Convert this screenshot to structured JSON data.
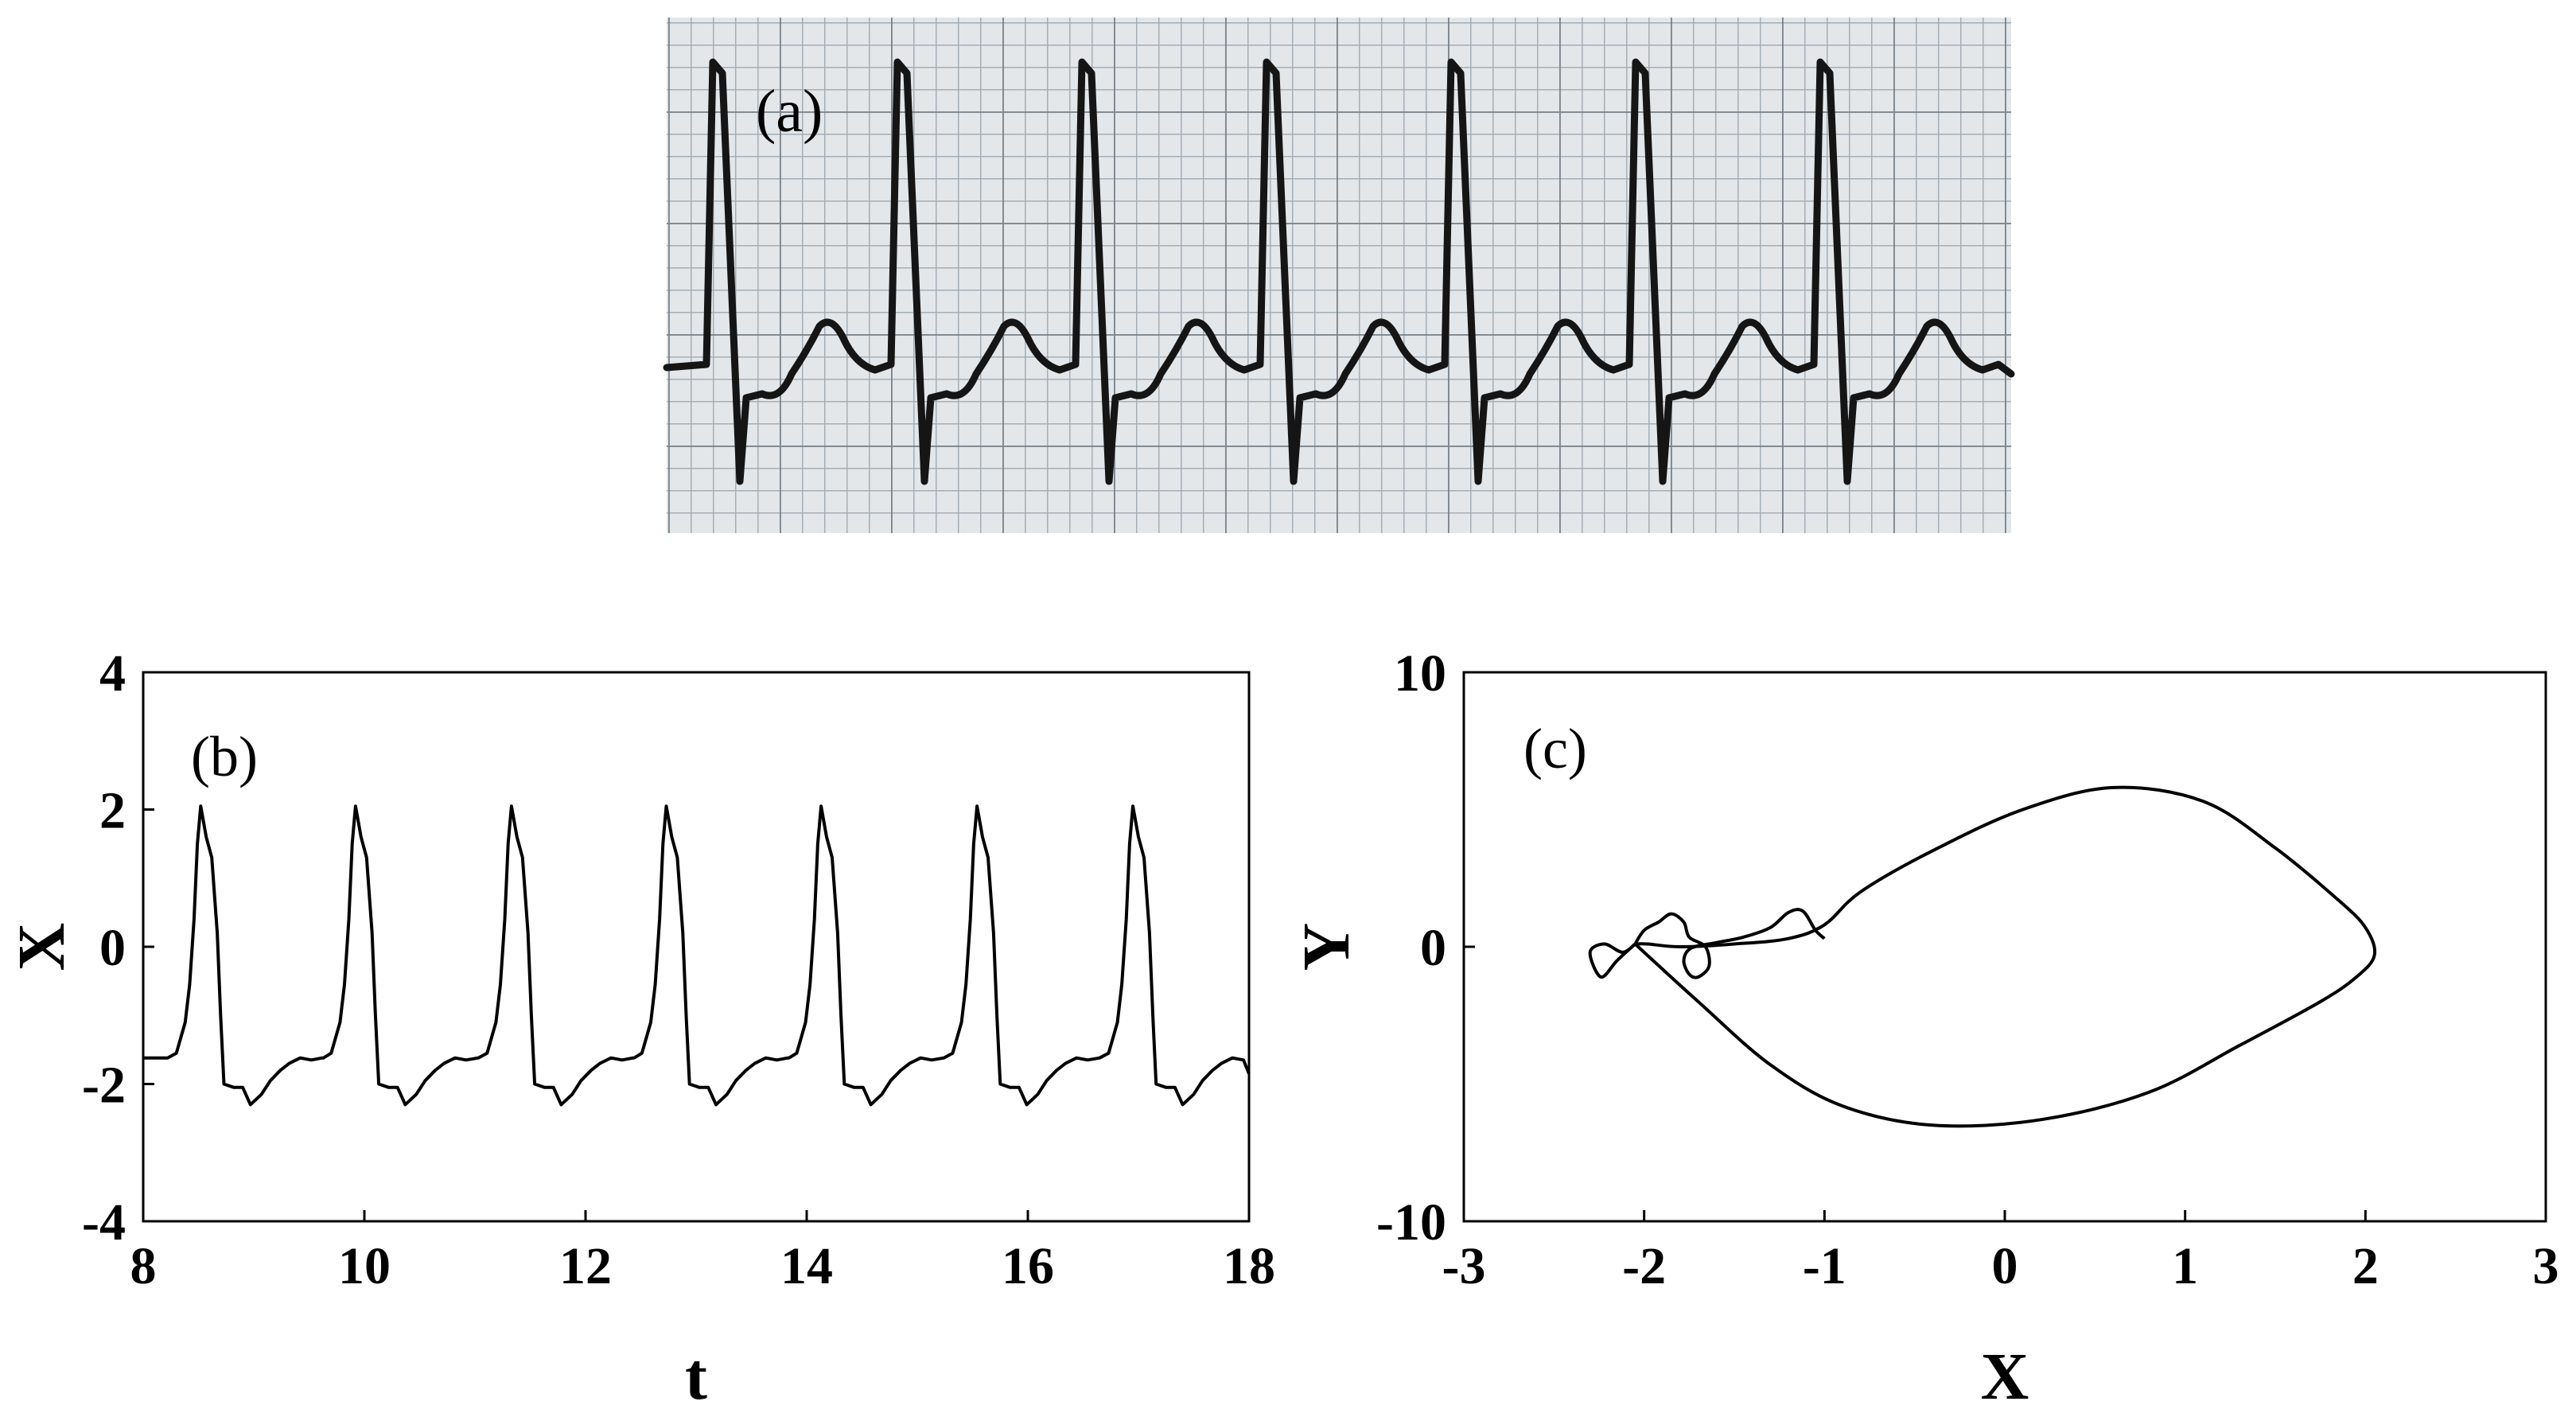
{
  "panels": {
    "a": {
      "label": "(a)"
    },
    "b": {
      "label": "(b)"
    },
    "c": {
      "label": "(c)"
    }
  },
  "chart_data": [
    {
      "id": "a",
      "type": "image",
      "content": "electrocardiogram strip on grid paper",
      "beats": 7,
      "colors": {
        "paper": "#e3e7ea",
        "grid_minor": "#9aa4ad",
        "grid_major": "#5a636c",
        "trace": "#151515"
      }
    },
    {
      "id": "b",
      "type": "line",
      "xlabel": "t",
      "ylabel": "X",
      "xlim": [
        8,
        18
      ],
      "ylim": [
        -4,
        4
      ],
      "xticks": [
        "8",
        "10",
        "12",
        "14",
        "16",
        "18"
      ],
      "yticks": [
        "4",
        "2",
        "0",
        "-2",
        "-4"
      ],
      "period": 1.41,
      "peak_times": [
        8.52,
        9.92,
        11.33,
        12.73,
        14.13,
        15.54,
        16.95
      ],
      "peak_value": 2.05,
      "trough_value": -2.3,
      "baseline_value": -1.65,
      "grid": false
    },
    {
      "id": "c",
      "type": "line",
      "xlabel": "X",
      "ylabel": "Y",
      "xlim": [
        -3,
        3
      ],
      "ylim": [
        -10,
        10
      ],
      "xticks": [
        "-3",
        "-2",
        "-1",
        "0",
        "1",
        "2",
        "3"
      ],
      "yticks": [
        "10",
        "0",
        "-10"
      ],
      "yticks_values": [
        10,
        0,
        -10
      ],
      "series": [
        {
          "x": [
            -2.05,
            -1.7,
            -1.3,
            -0.9,
            -0.4,
            0.2,
            0.8,
            1.3,
            1.75,
            1.95,
            2.05,
            2.0,
            1.85,
            1.5,
            1.1,
            0.6,
            0.1,
            -0.4,
            -0.8,
            -1.0,
            -1.2,
            -1.5,
            -1.8,
            -1.98,
            -2.05
          ],
          "y": [
            0.1,
            -2.0,
            -4.3,
            -5.8,
            -6.5,
            -6.3,
            -5.3,
            -3.6,
            -2.0,
            -1.1,
            -0.3,
            0.7,
            1.7,
            3.6,
            5.3,
            5.8,
            5.0,
            3.5,
            2.0,
            0.8,
            0.3,
            0.1,
            0.0,
            0.1,
            0.1
          ],
          "note": "main loop"
        },
        {
          "x": [
            -2.05,
            -2.0,
            -1.92,
            -1.85,
            -1.78,
            -1.75,
            -1.66,
            -1.64,
            -1.7,
            -1.75,
            -1.78,
            -1.74,
            -1.6,
            -1.45,
            -1.3,
            -1.2,
            -1.12,
            -1.05,
            -1.0
          ],
          "y": [
            0.1,
            0.6,
            0.9,
            1.2,
            0.9,
            0.35,
            0.0,
            -0.7,
            -1.1,
            -1.0,
            -0.5,
            -0.05,
            0.15,
            0.35,
            0.7,
            1.25,
            1.3,
            0.6,
            0.3
          ],
          "note": "upper wiggles"
        },
        {
          "x": [
            -2.05,
            -2.15,
            -2.24,
            -2.3,
            -2.22,
            -2.12,
            -2.05
          ],
          "y": [
            0.1,
            -0.5,
            -1.1,
            -0.2,
            0.1,
            -0.2,
            0.1
          ],
          "note": "left small loop"
        }
      ],
      "grid": false
    }
  ]
}
